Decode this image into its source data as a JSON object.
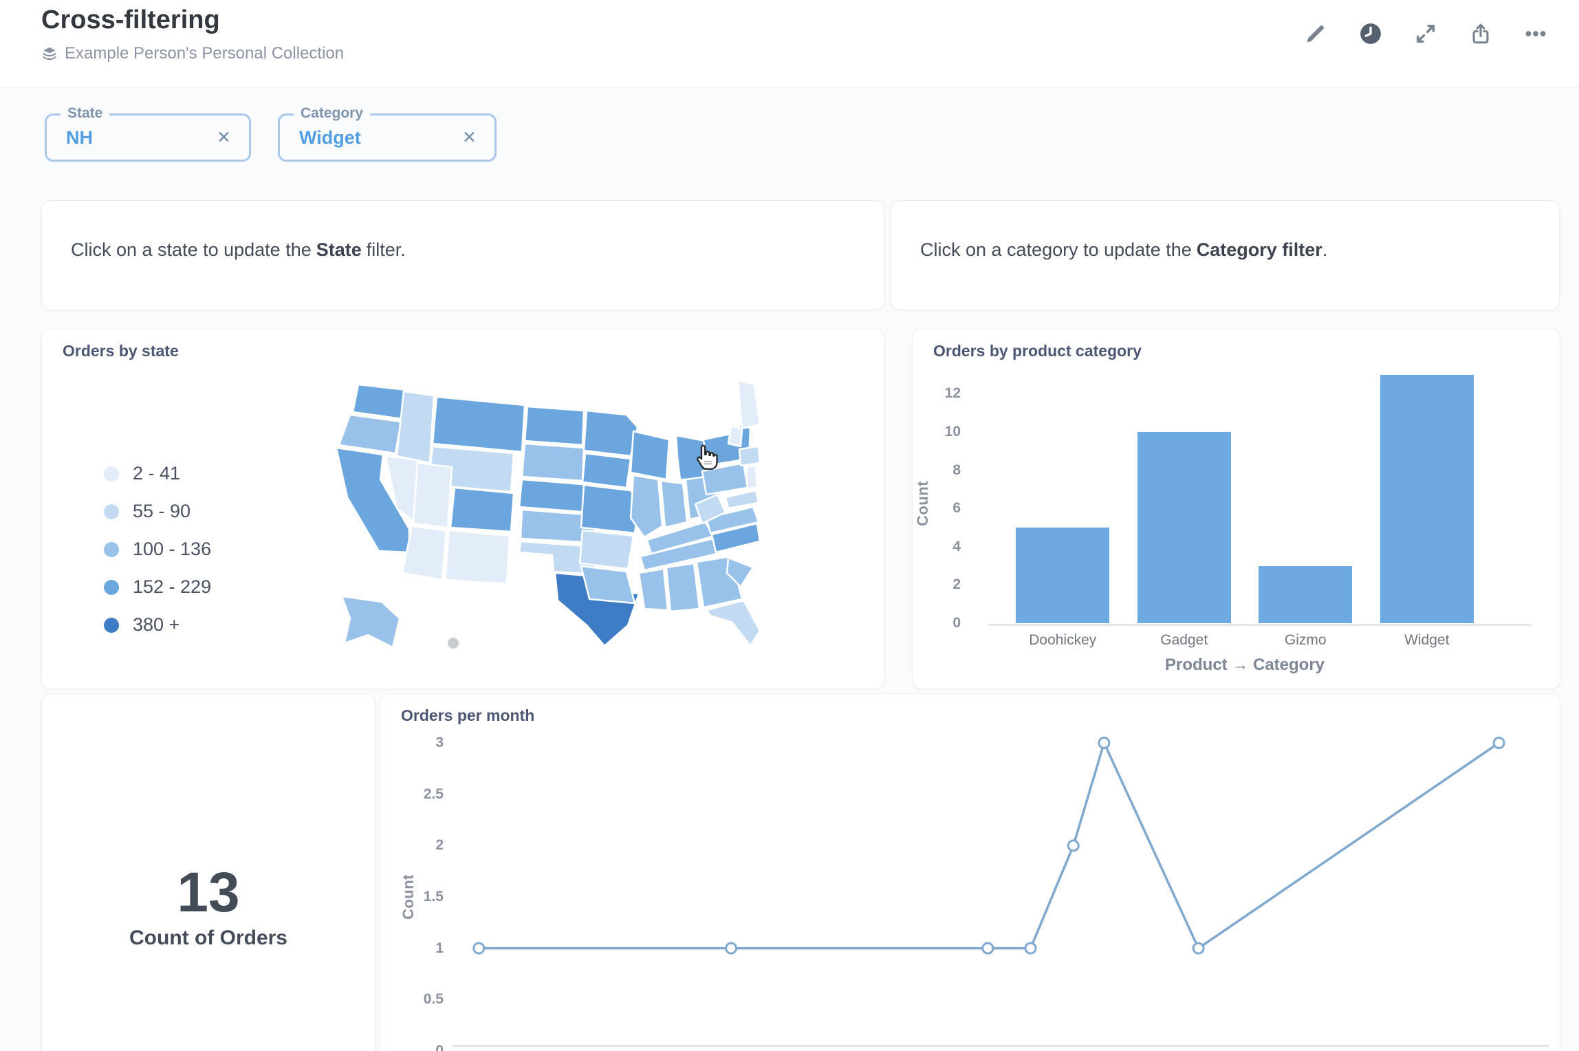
{
  "header": {
    "title": "Cross-filtering",
    "collection": "Example Person's Personal Collection",
    "action_icons": [
      "pencil-icon",
      "clock-icon",
      "fullscreen-icon",
      "share-icon",
      "ellipsis-icon"
    ]
  },
  "filters": [
    {
      "label": "State",
      "value": "NH"
    },
    {
      "label": "Category",
      "value": "Widget"
    }
  ],
  "text_cards": [
    {
      "prefix": "Click on a state to update the",
      "bold": "State",
      "suffix": "filter."
    },
    {
      "prefix": "Click on a category to update the",
      "bold": "Category filter",
      "suffix": "."
    }
  ],
  "colors": {
    "accent_blue": "#509ee3",
    "bar_fill": "#6fa9e2",
    "line_stroke": "#7fa9cf",
    "chip_border": "#a9c8ec",
    "hawaii_gray": "#c9cdd2"
  },
  "chart_data": [
    {
      "type": "choropleth-map",
      "title": "Orders by state",
      "legend_buckets": [
        {
          "range": "2 - 41",
          "color": "#e2edf9"
        },
        {
          "range": "55 - 90",
          "color": "#c2dbf3"
        },
        {
          "range": "100 - 136",
          "color": "#98c2ea"
        },
        {
          "range": "152 - 229",
          "color": "#6ca6df"
        },
        {
          "range": "380 +",
          "color": "#3e7cc6"
        }
      ],
      "state_buckets": {
        "WA": 4,
        "OR": 3,
        "CA": 4,
        "NV": 1,
        "ID": 2,
        "MT": 4,
        "WY": 2,
        "UT": 1,
        "CO": 4,
        "AZ": 1,
        "NM": 1,
        "ND": 4,
        "SD": 3,
        "NE": 4,
        "KS": 3,
        "OK": 2,
        "TX": 5,
        "MN": 4,
        "IA": 4,
        "MO": 4,
        "AR": 2,
        "LA": 3,
        "WI": 4,
        "IL": 3,
        "MI": 4,
        "IN": 3,
        "OH": 3,
        "KY": 3,
        "TN": 3,
        "MS": 3,
        "AL": 3,
        "GA": 3,
        "FL": 2,
        "SC": 3,
        "NC": 4,
        "VA": 3,
        "WV": 2,
        "PA": 3,
        "NY": 4,
        "ME": 1,
        "VTNH": 1,
        "MACTRI": 2,
        "NJ": 1,
        "MDDE": 2,
        "AK": 3
      }
    },
    {
      "type": "bar",
      "title": "Orders by product category",
      "categories": [
        "Doohickey",
        "Gadget",
        "Gizmo",
        "Widget"
      ],
      "values": [
        5,
        10,
        3,
        13
      ],
      "xlabel": "Product → Category",
      "ylabel": "Count",
      "yticks": [
        0,
        2,
        4,
        6,
        8,
        10,
        12
      ],
      "ylim": [
        0,
        13.4
      ],
      "grid": false,
      "legend": "none"
    },
    {
      "type": "scalar",
      "value": "13",
      "label": "Count of Orders"
    },
    {
      "type": "line",
      "title": "Orders per month",
      "ylabel": "Count",
      "yticks": [
        3,
        2.5,
        2,
        1.5,
        1,
        0.5,
        0
      ],
      "ylim": [
        0,
        3.2
      ],
      "x_axis_note": "time axis, labels cut off by viewport",
      "points": [
        {
          "x_frac": 0.024,
          "y": 1
        },
        {
          "x_frac": 0.254,
          "y": 1
        },
        {
          "x_frac": 0.488,
          "y": 1
        },
        {
          "x_frac": 0.527,
          "y": 1
        },
        {
          "x_frac": 0.566,
          "y": 2
        },
        {
          "x_frac": 0.594,
          "y": 3
        },
        {
          "x_frac": 0.68,
          "y": 1
        },
        {
          "x_frac": 0.954,
          "y": 3
        }
      ]
    }
  ]
}
